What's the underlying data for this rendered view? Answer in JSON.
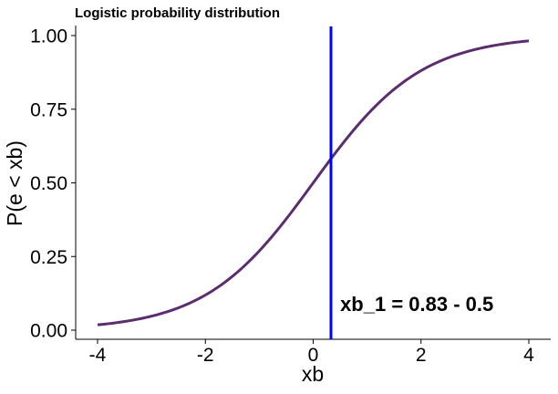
{
  "chart_data": {
    "type": "line",
    "title": "Logistic probability distribution",
    "xlabel": "xb",
    "ylabel": "P(e < xb)",
    "xlim": [
      -4,
      4
    ],
    "ylim": [
      0,
      1
    ],
    "x_ticks": [
      -4,
      -2,
      0,
      2,
      4
    ],
    "x_tick_labels": [
      "-4",
      "-2",
      "0",
      "2",
      "4"
    ],
    "y_ticks": [
      0,
      0.25,
      0.5,
      0.75,
      1
    ],
    "y_tick_labels": [
      "0.00",
      "0.25",
      "0.50",
      "0.75",
      "1.00"
    ],
    "grid": false,
    "series": [
      {
        "color": "#5b2c6f",
        "x": [
          -4,
          -3.5,
          -3,
          -2.5,
          -2,
          -1.5,
          -1,
          -0.5,
          0,
          0.5,
          1,
          1.5,
          2,
          2.5,
          3,
          3.5,
          4
        ],
        "y": [
          0.018,
          0.029,
          0.047,
          0.076,
          0.119,
          0.182,
          0.269,
          0.378,
          0.5,
          0.622,
          0.731,
          0.818,
          0.881,
          0.924,
          0.953,
          0.971,
          0.982
        ]
      }
    ],
    "vline": {
      "x": 0.33,
      "color": "#0000ff"
    },
    "annotation": {
      "text": "xb_1 =  0.83 - 0.5",
      "x": 0.5,
      "y": 0.09
    }
  }
}
